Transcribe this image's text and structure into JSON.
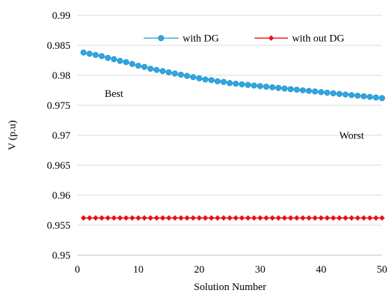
{
  "chart_data": {
    "type": "line",
    "xlabel": "Solution Number",
    "ylabel": "V (p.u)",
    "xlim": [
      0,
      50
    ],
    "ylim": [
      0.95,
      0.99
    ],
    "x_ticks": [
      0,
      10,
      20,
      30,
      40,
      50
    ],
    "y_ticks": [
      0.95,
      0.955,
      0.96,
      0.965,
      0.97,
      0.975,
      0.98,
      0.985,
      0.99
    ],
    "grid": "horizontal",
    "legend_position": "top-right",
    "annotations": [
      {
        "text": "Best",
        "x": 6,
        "y": 0.9764
      },
      {
        "text": "Worst",
        "x": 45,
        "y": 0.9694
      }
    ],
    "x": [
      1,
      2,
      3,
      4,
      5,
      6,
      7,
      8,
      9,
      10,
      11,
      12,
      13,
      14,
      15,
      16,
      17,
      18,
      19,
      20,
      21,
      22,
      23,
      24,
      25,
      26,
      27,
      28,
      29,
      30,
      31,
      32,
      33,
      34,
      35,
      36,
      37,
      38,
      39,
      40,
      41,
      42,
      43,
      44,
      45,
      46,
      47,
      48,
      49,
      50
    ],
    "series": [
      {
        "name": "with DG",
        "color": "#29a9e0",
        "marker": "circle",
        "values": [
          0.9838,
          0.9836,
          0.9834,
          0.9832,
          0.9829,
          0.9827,
          0.9824,
          0.9822,
          0.9819,
          0.9816,
          0.9814,
          0.9811,
          0.9809,
          0.9807,
          0.9805,
          0.9803,
          0.9801,
          0.9799,
          0.9797,
          0.9795,
          0.9793,
          0.9792,
          0.979,
          0.9789,
          0.9787,
          0.9786,
          0.9785,
          0.9784,
          0.9783,
          0.9782,
          0.9781,
          0.978,
          0.9779,
          0.9778,
          0.9777,
          0.9776,
          0.9775,
          0.9774,
          0.9773,
          0.9772,
          0.9771,
          0.977,
          0.9769,
          0.9768,
          0.9767,
          0.9766,
          0.9765,
          0.9764,
          0.9763,
          0.9762
        ]
      },
      {
        "name": "with out DG",
        "color": "#e8101a",
        "marker": "diamond",
        "values": [
          0.9562,
          0.9562,
          0.9562,
          0.9562,
          0.9562,
          0.9562,
          0.9562,
          0.9562,
          0.9562,
          0.9562,
          0.9562,
          0.9562,
          0.9562,
          0.9562,
          0.9562,
          0.9562,
          0.9562,
          0.9562,
          0.9562,
          0.9562,
          0.9562,
          0.9562,
          0.9562,
          0.9562,
          0.9562,
          0.9562,
          0.9562,
          0.9562,
          0.9562,
          0.9562,
          0.9562,
          0.9562,
          0.9562,
          0.9562,
          0.9562,
          0.9562,
          0.9562,
          0.9562,
          0.9562,
          0.9562,
          0.9562,
          0.9562,
          0.9562,
          0.9562,
          0.9562,
          0.9562,
          0.9562,
          0.9562,
          0.9562,
          0.9562
        ]
      }
    ]
  }
}
